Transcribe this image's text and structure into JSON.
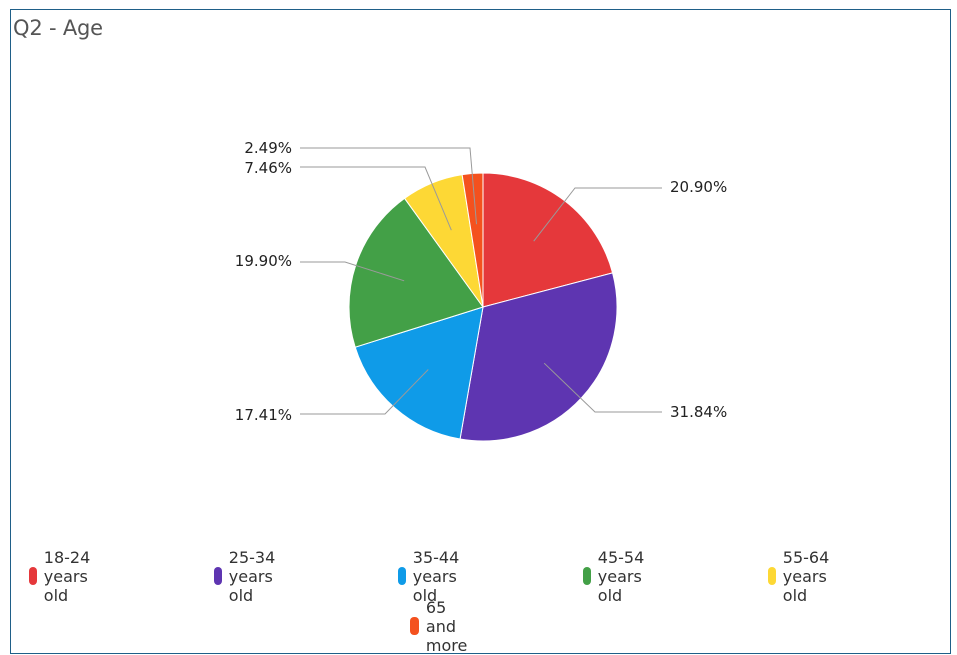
{
  "title": "Q2 - Age",
  "chart_data": {
    "type": "pie",
    "title": "Q2 - Age",
    "categories": [
      "18-24 years old",
      "25-34 years old",
      "35-44 years old",
      "45-54 years old",
      "55-64 years old",
      "65 and more"
    ],
    "values": [
      20.9,
      31.84,
      17.41,
      19.9,
      7.46,
      2.49
    ],
    "labels": [
      "20.90%",
      "31.84%",
      "17.41%",
      "19.90%",
      "7.46%",
      "2.49%"
    ],
    "colors": [
      "#e5383b",
      "#5e35b1",
      "#0f9be8",
      "#43a047",
      "#fdd835",
      "#f4511e"
    ],
    "legend_position": "bottom"
  }
}
